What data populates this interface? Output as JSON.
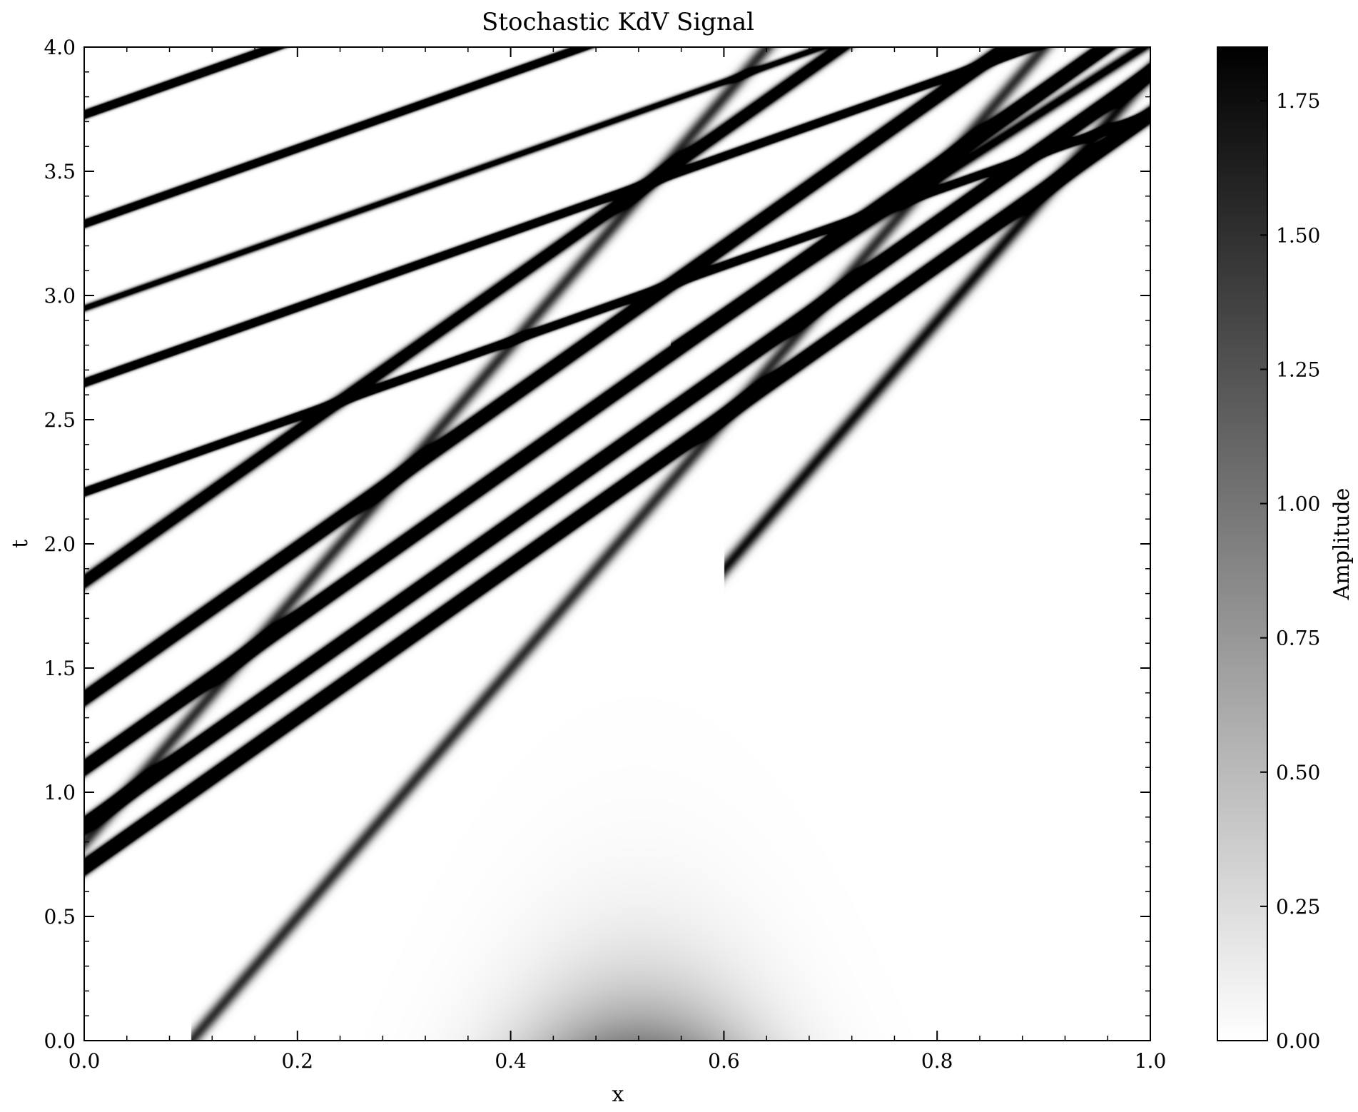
{
  "chart_data": {
    "type": "heatmap",
    "title": "Stochastic KdV Signal",
    "xlabel": "x",
    "ylabel": "t",
    "xlim": [
      0.0,
      1.0
    ],
    "ylim": [
      0.0,
      4.0
    ],
    "x_ticks": [
      "0.0",
      "0.2",
      "0.4",
      "0.6",
      "0.8",
      "1.0"
    ],
    "y_ticks": [
      "0.0",
      "0.5",
      "1.0",
      "1.5",
      "2.0",
      "2.5",
      "3.0",
      "3.5",
      "4.0"
    ],
    "colorbar": {
      "label": "Amplitude",
      "range": [
        0.0,
        1.85
      ],
      "ticks": [
        "0.00",
        "0.25",
        "0.50",
        "0.75",
        "1.00",
        "1.25",
        "1.50",
        "1.75"
      ],
      "colormap": "Greys",
      "low_color": "#ffffff",
      "high_color": "#000000"
    },
    "initial_bump": {
      "center_x": 0.52,
      "width_x": 0.11,
      "amplitude": 0.9,
      "decay_t": 0.25
    },
    "solitons": [
      {
        "t_at_x0": 0.7,
        "slope_dt_dx": 3.03,
        "amplitude": 1.85
      },
      {
        "t_at_x0": 0.87,
        "slope_dt_dx": 3.03,
        "amplitude": 1.8
      },
      {
        "t_at_x0": 1.1,
        "slope_dt_dx": 3.03,
        "amplitude": 1.6
      },
      {
        "t_at_x0": 1.38,
        "slope_dt_dx": 3.03,
        "amplitude": 1.4
      },
      {
        "t_at_x0": 1.85,
        "slope_dt_dx": 3.03,
        "amplitude": 0.9
      },
      {
        "t_at_x0": 2.21,
        "slope_dt_dx": 1.52,
        "amplitude": 1.85
      },
      {
        "t_at_x0": 2.65,
        "slope_dt_dx": 1.52,
        "amplitude": 1.75
      },
      {
        "t_at_x0": 2.95,
        "slope_dt_dx": 1.52,
        "amplitude": 0.6
      },
      {
        "t_at_x0": 3.29,
        "slope_dt_dx": 1.52,
        "amplitude": 1.5
      },
      {
        "t_at_x0": 3.73,
        "slope_dt_dx": 1.52,
        "amplitude": 1.8
      },
      {
        "t_at_x0": 1.27,
        "slope_dt_dx": 2.75,
        "amplitude": 0.5,
        "x_min": 0.55
      },
      {
        "t_at_x0": -1.1,
        "slope_dt_dx": 5.0,
        "amplitude": 0.35,
        "x_min": 0.6
      },
      {
        "t_at_x0": -0.5,
        "slope_dt_dx": 5.0,
        "amplitude": 0.3,
        "x_min": 0.1
      },
      {
        "t_at_x0": 0.8,
        "slope_dt_dx": 5.0,
        "amplitude": 0.3
      }
    ]
  }
}
